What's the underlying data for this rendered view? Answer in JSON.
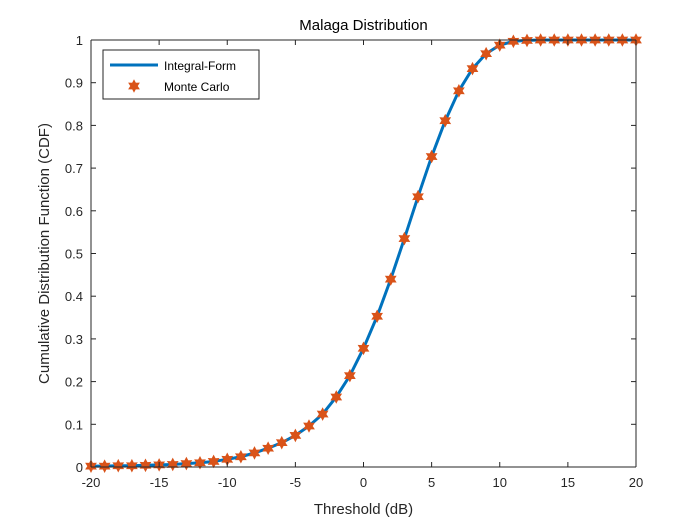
{
  "chart_data": {
    "type": "line",
    "title": "Malaga Distribution",
    "xlabel": "Threshold (dB)",
    "ylabel": "Cumulative Distribution Function (CDF)",
    "xlim": [
      -20,
      20
    ],
    "ylim": [
      0,
      1
    ],
    "x_ticks": [
      -20,
      -15,
      -10,
      -5,
      0,
      5,
      10,
      15,
      20
    ],
    "y_ticks": [
      0,
      0.1,
      0.2,
      0.3,
      0.4,
      0.5,
      0.6,
      0.7,
      0.8,
      0.9,
      1
    ],
    "x_tick_labels": [
      "-20",
      "-15",
      "-10",
      "-5",
      "0",
      "5",
      "10",
      "15",
      "20"
    ],
    "y_tick_labels": [
      "0",
      "0.1",
      "0.2",
      "0.3",
      "0.4",
      "0.5",
      "0.6",
      "0.7",
      "0.8",
      "0.9",
      "1"
    ],
    "grid": false,
    "legend_position": "top-left",
    "colors": {
      "line": "#0072BD",
      "markers": "#D95319"
    },
    "series": [
      {
        "name": "Integral-Form",
        "style": "line",
        "x": [
          -20,
          -19,
          -18,
          -17,
          -16,
          -15,
          -14,
          -13,
          -12,
          -11,
          -10,
          -9,
          -8,
          -7,
          -6,
          -5,
          -4,
          -3,
          -2,
          -1,
          0,
          1,
          2,
          3,
          4,
          5,
          6,
          7,
          8,
          9,
          10,
          11,
          12,
          13,
          14,
          15,
          16,
          17,
          18,
          19,
          20
        ],
        "y": [
          0.002,
          0.002,
          0.003,
          0.003,
          0.004,
          0.005,
          0.006,
          0.008,
          0.01,
          0.013,
          0.018,
          0.024,
          0.033,
          0.044,
          0.057,
          0.074,
          0.096,
          0.124,
          0.164,
          0.214,
          0.278,
          0.353,
          0.44,
          0.535,
          0.633,
          0.727,
          0.811,
          0.881,
          0.933,
          0.968,
          0.988,
          0.997,
          0.999,
          1.0,
          1.0,
          1.0,
          1.0,
          1.0,
          1.0,
          1.0,
          1.0
        ]
      },
      {
        "name": "Monte Carlo",
        "style": "markers",
        "x": [
          -20,
          -19,
          -18,
          -17,
          -16,
          -15,
          -14,
          -13,
          -12,
          -11,
          -10,
          -9,
          -8,
          -7,
          -6,
          -5,
          -4,
          -3,
          -2,
          -1,
          0,
          1,
          2,
          3,
          4,
          5,
          6,
          7,
          8,
          9,
          10,
          11,
          12,
          13,
          14,
          15,
          16,
          17,
          18,
          19,
          20
        ],
        "y": [
          0.002,
          0.002,
          0.003,
          0.003,
          0.004,
          0.005,
          0.006,
          0.008,
          0.01,
          0.013,
          0.018,
          0.024,
          0.033,
          0.044,
          0.057,
          0.074,
          0.096,
          0.124,
          0.164,
          0.214,
          0.278,
          0.353,
          0.44,
          0.535,
          0.633,
          0.727,
          0.811,
          0.881,
          0.933,
          0.968,
          0.988,
          0.997,
          0.999,
          1.0,
          1.0,
          1.0,
          1.0,
          1.0,
          1.0,
          1.0,
          1.0
        ]
      }
    ]
  }
}
